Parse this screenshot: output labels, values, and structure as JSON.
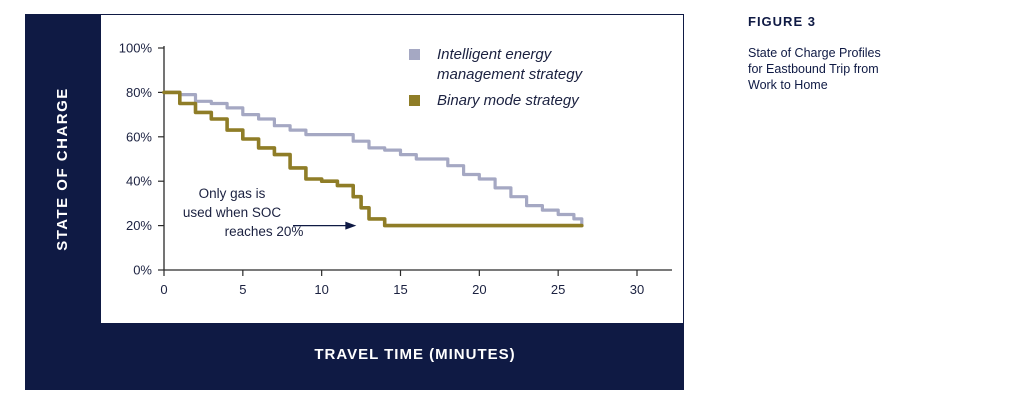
{
  "figure": {
    "label": "FIGURE 3",
    "caption_lines": [
      "State of Charge Profiles",
      "for Eastbound Trip from",
      "Work to Home"
    ]
  },
  "colors": {
    "frame": "#0f1a44",
    "intelligent": "#a5a8c3",
    "binary": "#8f7d27",
    "axis": "#2a2a2a",
    "text": "#1b2140"
  },
  "chart_data": {
    "type": "line",
    "title": "",
    "xlabel": "TRAVEL TIME (MINUTES)",
    "ylabel": "STATE OF CHARGE",
    "xlim": [
      0,
      30
    ],
    "ylim": [
      0,
      100
    ],
    "x_ticks": [
      "0",
      "5",
      "10",
      "15",
      "20",
      "25",
      "30"
    ],
    "y_ticks": [
      "0%",
      "20%",
      "40%",
      "60%",
      "80%",
      "100%"
    ],
    "legend_position": "top-right",
    "grid": false,
    "series": [
      {
        "name": "Intelligent energy management strategy",
        "color": "#a5a8c3",
        "points": [
          [
            0,
            80
          ],
          [
            1,
            79
          ],
          [
            2,
            76
          ],
          [
            3,
            75
          ],
          [
            4,
            73
          ],
          [
            5,
            70
          ],
          [
            6,
            68
          ],
          [
            7,
            65
          ],
          [
            8,
            63
          ],
          [
            9,
            61
          ],
          [
            10,
            61
          ],
          [
            11,
            61
          ],
          [
            12,
            58
          ],
          [
            13,
            55
          ],
          [
            14,
            54
          ],
          [
            15,
            52
          ],
          [
            16,
            50
          ],
          [
            17,
            50
          ],
          [
            18,
            47
          ],
          [
            19,
            43
          ],
          [
            20,
            41
          ],
          [
            21,
            37
          ],
          [
            22,
            33
          ],
          [
            23,
            29
          ],
          [
            24,
            27
          ],
          [
            25,
            25
          ],
          [
            26,
            23
          ],
          [
            26.5,
            20
          ]
        ]
      },
      {
        "name": "Binary mode strategy",
        "color": "#8f7d27",
        "points": [
          [
            0,
            80
          ],
          [
            1,
            75
          ],
          [
            2,
            71
          ],
          [
            3,
            68
          ],
          [
            4,
            63
          ],
          [
            5,
            59
          ],
          [
            6,
            55
          ],
          [
            7,
            52
          ],
          [
            8,
            46
          ],
          [
            9,
            41
          ],
          [
            10,
            40
          ],
          [
            11,
            38
          ],
          [
            12,
            33
          ],
          [
            12.5,
            28
          ],
          [
            13,
            23
          ],
          [
            14,
            20
          ],
          [
            15,
            20
          ],
          [
            20,
            20
          ],
          [
            25,
            20
          ],
          [
            26.5,
            20
          ]
        ]
      }
    ],
    "annotation": {
      "lines": [
        "Only gas is",
        "used when SOC",
        "reaches 20%"
      ],
      "arrow_to": [
        12.2,
        20
      ]
    }
  }
}
